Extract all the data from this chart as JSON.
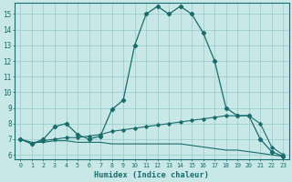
{
  "xlabel": "Humidex (Indice chaleur)",
  "bg_color": "#c8e8e8",
  "grid_color": "#9ecece",
  "line_color": "#1a6b6b",
  "xlim": [
    -0.5,
    23.5
  ],
  "ylim": [
    5.7,
    15.7
  ],
  "xticks": [
    0,
    1,
    2,
    3,
    4,
    5,
    6,
    7,
    8,
    9,
    10,
    11,
    12,
    13,
    14,
    15,
    16,
    17,
    18,
    19,
    20,
    21,
    22,
    23
  ],
  "yticks": [
    6,
    7,
    8,
    9,
    10,
    11,
    12,
    13,
    14,
    15
  ],
  "line1_x": [
    0,
    1,
    2,
    3,
    4,
    5,
    6,
    7,
    8,
    9,
    10,
    11,
    12,
    13,
    14,
    15,
    16,
    17,
    18,
    19,
    20,
    21,
    22,
    23
  ],
  "line1_y": [
    7.0,
    6.7,
    7.0,
    7.8,
    8.0,
    7.3,
    7.0,
    7.2,
    8.9,
    9.5,
    13.0,
    15.0,
    15.5,
    15.0,
    15.5,
    15.0,
    13.8,
    12.0,
    9.0,
    8.5,
    8.5,
    7.0,
    6.2,
    5.9
  ],
  "line2_x": [
    0,
    1,
    2,
    3,
    4,
    5,
    6,
    7,
    8,
    9,
    10,
    11,
    12,
    13,
    14,
    15,
    16,
    17,
    18,
    19,
    20,
    21,
    22,
    23
  ],
  "line2_y": [
    7.0,
    6.7,
    6.9,
    7.0,
    7.1,
    7.1,
    7.2,
    7.3,
    7.5,
    7.6,
    7.7,
    7.8,
    7.9,
    8.0,
    8.1,
    8.2,
    8.3,
    8.4,
    8.5,
    8.5,
    8.5,
    8.0,
    6.5,
    6.0
  ],
  "line3_x": [
    0,
    1,
    2,
    3,
    4,
    5,
    6,
    7,
    8,
    9,
    10,
    11,
    12,
    13,
    14,
    15,
    16,
    17,
    18,
    19,
    20,
    21,
    22,
    23
  ],
  "line3_y": [
    7.0,
    6.8,
    6.8,
    6.9,
    6.9,
    6.8,
    6.8,
    6.8,
    6.7,
    6.7,
    6.7,
    6.7,
    6.7,
    6.7,
    6.7,
    6.6,
    6.5,
    6.4,
    6.3,
    6.3,
    6.2,
    6.1,
    6.0,
    5.9
  ]
}
